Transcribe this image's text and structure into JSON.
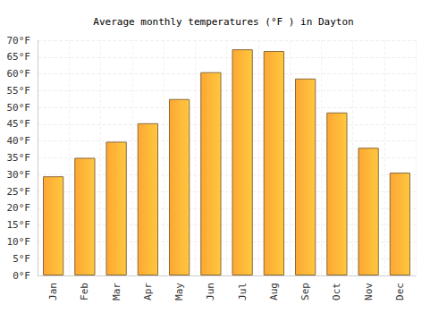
{
  "chart_data": {
    "type": "bar",
    "title": "Average monthly temperatures (°F ) in Dayton",
    "categories": [
      "Jan",
      "Feb",
      "Mar",
      "Apr",
      "May",
      "Jun",
      "Jul",
      "Aug",
      "Sep",
      "Oct",
      "Nov",
      "Dec"
    ],
    "values": [
      29.5,
      35,
      39.8,
      45.3,
      52.5,
      60.5,
      67.3,
      66.8,
      58.6,
      48.5,
      38,
      30.6
    ],
    "color": "#fda733",
    "ylim": [
      0,
      70
    ],
    "yticks": [
      {
        "value": 0,
        "label": "0°F"
      },
      {
        "value": 5,
        "label": "5°F"
      },
      {
        "value": 10,
        "label": "10°F"
      },
      {
        "value": 15,
        "label": "15°F"
      },
      {
        "value": 20,
        "label": "20°F"
      },
      {
        "value": 25,
        "label": "25°F"
      },
      {
        "value": 30,
        "label": "30°F"
      },
      {
        "value": 35,
        "label": "35°F"
      },
      {
        "value": 40,
        "label": "40°F"
      },
      {
        "value": 45,
        "label": "45°F"
      },
      {
        "value": 50,
        "label": "50°F"
      },
      {
        "value": 55,
        "label": "55°F"
      },
      {
        "value": 60,
        "label": "60°F"
      },
      {
        "value": 65,
        "label": "65°F"
      },
      {
        "value": 70,
        "label": "70°F"
      }
    ],
    "grid": true
  }
}
